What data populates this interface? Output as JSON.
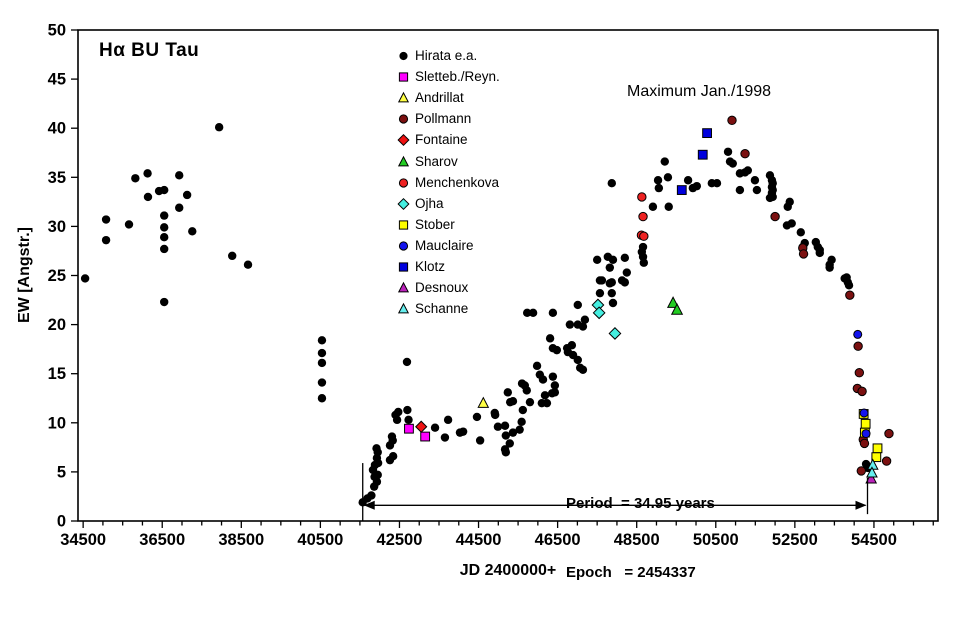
{
  "chart_data": {
    "type": "scatter",
    "title": "Hα BU Tau",
    "xlabel": "JD 2400000+",
    "ylabel": "EW [Angstr.]",
    "xlim": [
      34370,
      56120
    ],
    "ylim": [
      0,
      50
    ],
    "xticks": [
      34500,
      36500,
      38500,
      40500,
      42500,
      44500,
      46500,
      48500,
      50500,
      52500,
      54500
    ],
    "xminor_step": 500,
    "yticks": [
      0,
      5,
      10,
      15,
      20,
      25,
      30,
      35,
      40,
      45,
      50
    ],
    "grid": false,
    "legend_position": "inside upper-middle-left",
    "annotations": {
      "maximum": "Maximum Jan./1998",
      "period": "Period  = 34.95 years",
      "epoch": "Epoch   = 2454337",
      "period_span": {
        "x1": 41571,
        "x2": 54337,
        "y": 1.6,
        "left_tick_ew": [
          0.0,
          5.9
        ],
        "right_tick_ew": [
          0.7,
          4.4
        ]
      }
    },
    "series": [
      {
        "name": "Hirata e.a.",
        "marker": "circle",
        "color": "#000000",
        "outline": false,
        "size": 4.2,
        "points": [
          [
            34550,
            24.7
          ],
          [
            35080,
            30.7
          ],
          [
            35080,
            28.6
          ],
          [
            35660,
            30.2
          ],
          [
            35820,
            34.9
          ],
          [
            36130,
            35.4
          ],
          [
            36140,
            33.0
          ],
          [
            36420,
            33.6
          ],
          [
            36550,
            33.7
          ],
          [
            36550,
            31.1
          ],
          [
            36550,
            29.9
          ],
          [
            36550,
            28.9
          ],
          [
            36550,
            27.7
          ],
          [
            36550,
            22.3
          ],
          [
            36930,
            35.2
          ],
          [
            36930,
            31.9
          ],
          [
            37130,
            33.2
          ],
          [
            37260,
            29.5
          ],
          [
            37940,
            40.1
          ],
          [
            38270,
            27.0
          ],
          [
            38670,
            26.1
          ],
          [
            40540,
            18.4
          ],
          [
            40540,
            17.1
          ],
          [
            40540,
            16.1
          ],
          [
            40540,
            14.1
          ],
          [
            40540,
            12.5
          ],
          [
            41570,
            1.9
          ],
          [
            41690,
            2.3
          ],
          [
            41790,
            2.6
          ],
          [
            41860,
            3.5
          ],
          [
            41930,
            4.0
          ],
          [
            41870,
            4.5
          ],
          [
            41950,
            4.7
          ],
          [
            41830,
            5.2
          ],
          [
            41880,
            5.7
          ],
          [
            41960,
            5.9
          ],
          [
            41930,
            6.4
          ],
          [
            41950,
            7.0
          ],
          [
            41920,
            7.4
          ],
          [
            42260,
            6.2
          ],
          [
            42340,
            6.6
          ],
          [
            42260,
            7.7
          ],
          [
            42330,
            8.2
          ],
          [
            42310,
            8.6
          ],
          [
            42440,
            10.3
          ],
          [
            42470,
            11.1
          ],
          [
            42400,
            10.8
          ],
          [
            42690,
            16.2
          ],
          [
            42700,
            11.3
          ],
          [
            42730,
            10.3
          ],
          [
            43400,
            9.5
          ],
          [
            43650,
            8.5
          ],
          [
            43730,
            10.3
          ],
          [
            44030,
            9.0
          ],
          [
            44110,
            9.1
          ],
          [
            44460,
            10.6
          ],
          [
            44540,
            8.2
          ],
          [
            44910,
            11.0
          ],
          [
            44920,
            10.8
          ],
          [
            44990,
            9.6
          ],
          [
            45170,
            9.7
          ],
          [
            45190,
            8.7
          ],
          [
            45170,
            7.3
          ],
          [
            45190,
            7.0
          ],
          [
            45240,
            13.1
          ],
          [
            45300,
            12.1
          ],
          [
            45370,
            12.2
          ],
          [
            45290,
            7.9
          ],
          [
            45370,
            9.0
          ],
          [
            45600,
            14.0
          ],
          [
            45670,
            13.8
          ],
          [
            45720,
            13.3
          ],
          [
            45800,
            12.1
          ],
          [
            45620,
            11.3
          ],
          [
            45590,
            10.1
          ],
          [
            45540,
            9.3
          ],
          [
            45730,
            21.2
          ],
          [
            45880,
            21.2
          ],
          [
            45980,
            15.8
          ],
          [
            46050,
            14.9
          ],
          [
            46130,
            14.4
          ],
          [
            46380,
            21.2
          ],
          [
            46310,
            18.6
          ],
          [
            46380,
            17.6
          ],
          [
            46480,
            17.4
          ],
          [
            46380,
            14.7
          ],
          [
            46430,
            13.8
          ],
          [
            46360,
            13.0
          ],
          [
            46180,
            12.8
          ],
          [
            46100,
            12.0
          ],
          [
            46230,
            12.0
          ],
          [
            46430,
            13.1
          ],
          [
            46740,
            17.6
          ],
          [
            46760,
            17.2
          ],
          [
            46810,
            20.0
          ],
          [
            46860,
            17.9
          ],
          [
            46890,
            16.9
          ],
          [
            47010,
            16.4
          ],
          [
            47070,
            15.6
          ],
          [
            47140,
            15.4
          ],
          [
            47010,
            22.0
          ],
          [
            47190,
            20.5
          ],
          [
            47010,
            20.0
          ],
          [
            47140,
            19.8
          ],
          [
            47570,
            24.5
          ],
          [
            47870,
            24.3
          ],
          [
            48130,
            24.5
          ],
          [
            47870,
            23.2
          ],
          [
            47900,
            22.2
          ],
          [
            47570,
            23.2
          ],
          [
            47500,
            26.6
          ],
          [
            47770,
            26.9
          ],
          [
            47900,
            26.6
          ],
          [
            47820,
            25.8
          ],
          [
            47620,
            24.5
          ],
          [
            47820,
            24.2
          ],
          [
            48200,
            26.8
          ],
          [
            48250,
            25.3
          ],
          [
            48200,
            24.3
          ],
          [
            48660,
            27.9
          ],
          [
            48630,
            27.4
          ],
          [
            48660,
            26.9
          ],
          [
            48680,
            26.3
          ],
          [
            47870,
            34.4
          ],
          [
            48910,
            32.0
          ],
          [
            49310,
            32.0
          ],
          [
            49210,
            36.6
          ],
          [
            49290,
            35.0
          ],
          [
            49040,
            34.7
          ],
          [
            49060,
            33.9
          ],
          [
            49800,
            34.7
          ],
          [
            50020,
            34.1
          ],
          [
            49920,
            33.9
          ],
          [
            50400,
            34.4
          ],
          [
            50530,
            34.4
          ],
          [
            50810,
            37.6
          ],
          [
            50860,
            36.6
          ],
          [
            50930,
            36.4
          ],
          [
            51110,
            35.4
          ],
          [
            51240,
            35.5
          ],
          [
            51310,
            35.7
          ],
          [
            51110,
            33.7
          ],
          [
            51490,
            34.7
          ],
          [
            51540,
            33.7
          ],
          [
            51870,
            35.2
          ],
          [
            51920,
            34.7
          ],
          [
            51940,
            34.4
          ],
          [
            51920,
            34.0
          ],
          [
            51940,
            33.7
          ],
          [
            51920,
            33.4
          ],
          [
            51940,
            33.0
          ],
          [
            51870,
            32.9
          ],
          [
            52320,
            32.0
          ],
          [
            52300,
            30.1
          ],
          [
            52370,
            32.5
          ],
          [
            52420,
            30.3
          ],
          [
            52650,
            29.4
          ],
          [
            52750,
            28.3
          ],
          [
            52700,
            27.9
          ],
          [
            53030,
            28.4
          ],
          [
            53080,
            27.9
          ],
          [
            53130,
            27.6
          ],
          [
            53130,
            27.3
          ],
          [
            53430,
            26.6
          ],
          [
            53380,
            26.1
          ],
          [
            53380,
            25.8
          ],
          [
            53760,
            24.7
          ],
          [
            53810,
            24.8
          ],
          [
            53840,
            24.3
          ],
          [
            53870,
            24.0
          ],
          [
            54300,
            5.8
          ],
          [
            54350,
            5.4
          ]
        ]
      },
      {
        "name": "Sletteb./Reyn.",
        "marker": "square",
        "color": "#FF00FF",
        "outline": true,
        "size": 4.4,
        "points": [
          [
            42740,
            9.4
          ],
          [
            43150,
            8.6
          ]
        ]
      },
      {
        "name": "Andrillat",
        "marker": "triangle",
        "color": "#FFFF44",
        "outline": true,
        "size": 4.4,
        "points": [
          [
            44620,
            12.0
          ]
        ]
      },
      {
        "name": "Pollmann",
        "marker": "circle",
        "color": "#7B1010",
        "outline": true,
        "size": 4.2,
        "points": [
          [
            50910,
            40.8
          ],
          [
            51240,
            37.4
          ],
          [
            52000,
            31.0
          ],
          [
            52700,
            27.8
          ],
          [
            52720,
            27.2
          ],
          [
            53890,
            23.0
          ],
          [
            54100,
            17.8
          ],
          [
            54130,
            15.1
          ],
          [
            54080,
            13.5
          ],
          [
            54200,
            13.2
          ],
          [
            54230,
            8.3
          ],
          [
            54260,
            7.9
          ],
          [
            54880,
            8.9
          ],
          [
            54820,
            6.1
          ],
          [
            54180,
            5.1
          ]
        ]
      },
      {
        "name": "Fontaine",
        "marker": "diamond",
        "color": "#EE1111",
        "outline": true,
        "size": 4.2,
        "points": [
          [
            43050,
            9.6
          ]
        ]
      },
      {
        "name": "Sharov",
        "marker": "triangle",
        "color": "#22CC22",
        "outline": true,
        "size": 4.6,
        "points": [
          [
            49420,
            22.2
          ],
          [
            49520,
            21.5
          ]
        ]
      },
      {
        "name": "Menchenkova",
        "marker": "circle",
        "color": "#EE2222",
        "outline": true,
        "size": 4.2,
        "points": [
          [
            48630,
            33.0
          ],
          [
            48660,
            31.0
          ],
          [
            48620,
            29.1
          ],
          [
            48680,
            29.0
          ]
        ]
      },
      {
        "name": "Ojha",
        "marker": "diamond",
        "color": "#44EEE0",
        "outline": true,
        "size": 4.4,
        "points": [
          [
            47520,
            22.0
          ],
          [
            47550,
            21.2
          ],
          [
            47950,
            19.1
          ]
        ]
      },
      {
        "name": "Stober",
        "marker": "square",
        "color": "#FFFF00",
        "outline": true,
        "size": 4.4,
        "points": [
          [
            54240,
            10.9
          ],
          [
            54290,
            9.9
          ],
          [
            54270,
            9.0
          ],
          [
            54590,
            7.4
          ],
          [
            54560,
            6.5
          ]
        ]
      },
      {
        "name": "Mauclaire",
        "marker": "circle",
        "color": "#1414EE",
        "outline": true,
        "size": 4.0,
        "points": [
          [
            54090,
            19.0
          ],
          [
            54250,
            11.0
          ],
          [
            54300,
            8.9
          ]
        ]
      },
      {
        "name": "Klotz",
        "marker": "square",
        "color": "#0000DD",
        "outline": true,
        "size": 4.4,
        "points": [
          [
            50280,
            39.5
          ],
          [
            50170,
            37.3
          ],
          [
            49640,
            33.7
          ]
        ]
      },
      {
        "name": "Desnoux",
        "marker": "triangle",
        "color": "#BB22BB",
        "outline": true,
        "size": 4.4,
        "points": [
          [
            54430,
            4.3
          ]
        ]
      },
      {
        "name": "Schanne",
        "marker": "triangle",
        "color": "#66EEEE",
        "outline": true,
        "size": 4.4,
        "points": [
          [
            54470,
            5.7
          ],
          [
            54450,
            4.9
          ]
        ]
      }
    ]
  }
}
